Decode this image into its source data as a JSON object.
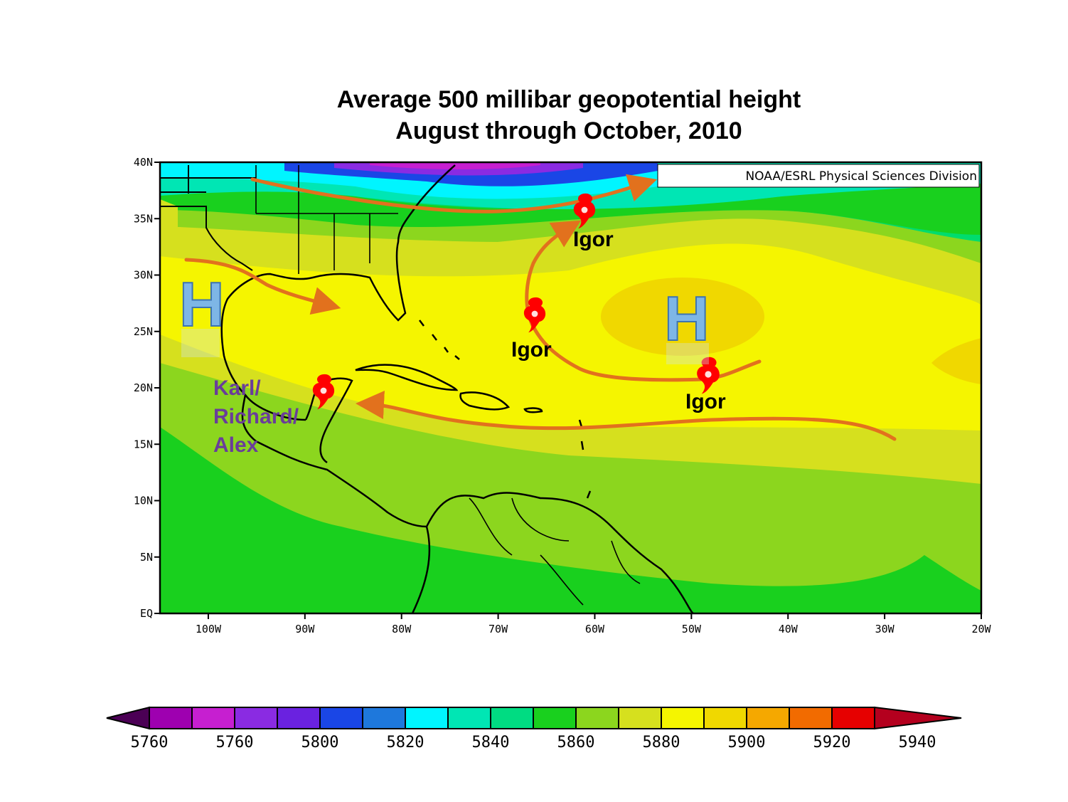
{
  "title": {
    "line1": "Average 500 millibar geopotential height",
    "line2": "August through October, 2010"
  },
  "credit": "NOAA/ESRL Physical Sciences Division",
  "map": {
    "lon_range": [
      -105,
      -20
    ],
    "lat_range": [
      0,
      40
    ],
    "lat_ticks": [
      "40N",
      "35N",
      "30N",
      "25N",
      "20N",
      "15N",
      "10N",
      "5N",
      "EQ"
    ],
    "lon_ticks": [
      "100W",
      "90W",
      "80W",
      "70W",
      "60W",
      "50W",
      "40W",
      "30W",
      "20W"
    ]
  },
  "high_pressure_labels": [
    "H",
    "H"
  ],
  "storm_labels": {
    "igor_1": "Igor",
    "igor_2": "Igor",
    "igor_3": "Igor",
    "karl_line1": "Karl/",
    "karl_line2": "Richard/",
    "karl_line3": "Alex"
  },
  "colorbar": {
    "labels": [
      "5760",
      "5760",
      "5800",
      "5820",
      "5840",
      "5860",
      "5880",
      "5900",
      "5920",
      "5940"
    ],
    "colors": [
      "#4b0055",
      "#9e00b0",
      "#c61fd0",
      "#8a2be2",
      "#6a22e0",
      "#1a46e6",
      "#1e78dc",
      "#00f5ff",
      "#00e6b4",
      "#00dc82",
      "#19d01e",
      "#8cd61e",
      "#d6e01e",
      "#f5f500",
      "#f0d800",
      "#f5a800",
      "#f26b00",
      "#e60000",
      "#b4001e"
    ]
  },
  "colors": {
    "arrow": "#e2711d",
    "storm": "#ff0000",
    "purple_label": "#6a3d9a",
    "h_fill": "#7eb6e6"
  }
}
